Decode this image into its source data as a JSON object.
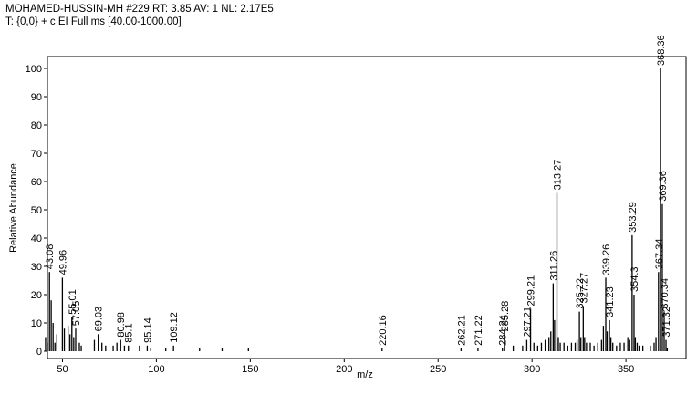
{
  "chart_data": {
    "type": "spectrum",
    "header_lines": [
      "MOHAMED-HUSSIN-MH #229  RT: 3.85  AV: 1  NL: 2.17E5",
      "T: {0,0} + c EI Full ms [40.00-1000.00]"
    ],
    "x_label": "m/z",
    "y_label": "Relative Abundance",
    "xlim": [
      42,
      382
    ],
    "ylim": [
      0,
      100
    ],
    "xticks": [
      50,
      100,
      150,
      200,
      250,
      300,
      350
    ],
    "yticks": [
      0,
      10,
      20,
      30,
      40,
      50,
      60,
      70,
      80,
      90,
      100
    ],
    "color": "#000000",
    "labeled_peaks": {
      "x": [
        43.08,
        49.96,
        55.01,
        57.05,
        69.03,
        80.98,
        85.1,
        95.14,
        109.12,
        220.16,
        262.21,
        271.22,
        284.24,
        285.28,
        297.21,
        299.21,
        311.26,
        313.27,
        325.22,
        327.27,
        339.26,
        341.23,
        353.29,
        354.3,
        367.34,
        368.36,
        369.36,
        370.34,
        371.32
      ],
      "values": [
        28,
        26,
        12,
        8,
        6,
        4,
        2,
        2,
        2,
        1,
        1,
        1,
        1,
        6,
        4,
        15,
        24,
        56,
        14,
        16,
        26,
        11,
        41,
        20,
        28,
        100,
        52,
        14,
        4
      ]
    },
    "minor_peaks": {
      "x": [
        41,
        42,
        44,
        45,
        46,
        47,
        51,
        53,
        54,
        56,
        59,
        60,
        67,
        71,
        73,
        77,
        79,
        83,
        91,
        97,
        105,
        123,
        135,
        149,
        290,
        295,
        301,
        303,
        305,
        307,
        309,
        310,
        312,
        314,
        315,
        317,
        319,
        321,
        323,
        324,
        326,
        328,
        329,
        331,
        333,
        335,
        337,
        338,
        340,
        342,
        343,
        345,
        347,
        349,
        351,
        352,
        355,
        356,
        357,
        359,
        363,
        365,
        366,
        372
      ],
      "values": [
        5,
        3,
        18,
        10,
        3,
        6,
        8,
        9,
        6,
        5,
        3,
        2,
        4,
        3,
        2,
        2,
        3,
        2,
        2,
        1,
        1,
        1,
        1,
        1,
        2,
        2,
        3,
        2,
        3,
        4,
        5,
        7,
        11,
        5,
        3,
        3,
        2,
        3,
        3,
        4,
        5,
        5,
        3,
        3,
        2,
        3,
        4,
        9,
        7,
        5,
        3,
        2,
        3,
        3,
        5,
        4,
        5,
        3,
        2,
        2,
        2,
        3,
        5,
        1
      ]
    }
  }
}
